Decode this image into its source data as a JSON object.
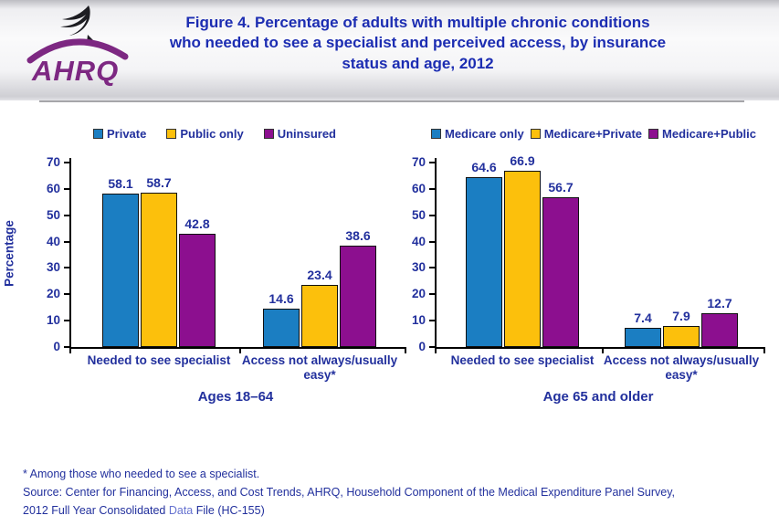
{
  "header": {
    "org": "AHRQ",
    "title": "Figure 4. Percentage of adults with multiple chronic conditions who needed to see a specialist and perceived access, by insurance status and age, 2012"
  },
  "colors": {
    "navy_text": "#22309d",
    "title_blue": "#1c2db2",
    "bar_blue": "#1b7ec2",
    "bar_yellow": "#fcc00c",
    "bar_purple": "#8c0f8f",
    "logo_purple": "#7d2882",
    "link_blue": "#6672d0"
  },
  "chart_data": [
    {
      "type": "bar",
      "title": "Ages 18–64",
      "ylabel": "Percentage",
      "ylim": [
        0,
        70
      ],
      "yticks": [
        0,
        10,
        20,
        30,
        40,
        50,
        60,
        70
      ],
      "grid": false,
      "legend_position": "top",
      "categories": [
        "Needed to see specialist",
        "Access not always/usually easy*"
      ],
      "series": [
        {
          "name": "Private",
          "color": "#1b7ec2",
          "values": [
            58.1,
            14.6
          ]
        },
        {
          "name": "Public only",
          "color": "#fcc00c",
          "values": [
            58.7,
            23.4
          ]
        },
        {
          "name": "Uninsured",
          "color": "#8c0f8f",
          "values": [
            42.8,
            38.6
          ]
        }
      ]
    },
    {
      "type": "bar",
      "title": "Age 65 and older",
      "ylabel": "",
      "ylim": [
        0,
        70
      ],
      "yticks": [
        0,
        10,
        20,
        30,
        40,
        50,
        60,
        70
      ],
      "grid": false,
      "legend_position": "top",
      "categories": [
        "Needed to see specialist",
        "Access not always/usually easy*"
      ],
      "series": [
        {
          "name": "Medicare only",
          "color": "#1b7ec2",
          "values": [
            64.6,
            7.4
          ]
        },
        {
          "name": "Medicare+Private",
          "color": "#fcc00c",
          "values": [
            66.9,
            7.9
          ]
        },
        {
          "name": "Medicare+Public",
          "color": "#8c0f8f",
          "values": [
            56.7,
            12.7
          ]
        }
      ]
    }
  ],
  "footnotes": {
    "asterisk_note": "* Among those who needed to see a specialist.",
    "source_line1": "Source: Center for Financing, Access, and Cost Trends, AHRQ,  Household Component of the Medical Expenditure Panel Survey,",
    "source_line2_prefix": "2012 Full Year Consolidated ",
    "source_link": "Data",
    "source_line2_suffix": " File (HC-155)"
  }
}
